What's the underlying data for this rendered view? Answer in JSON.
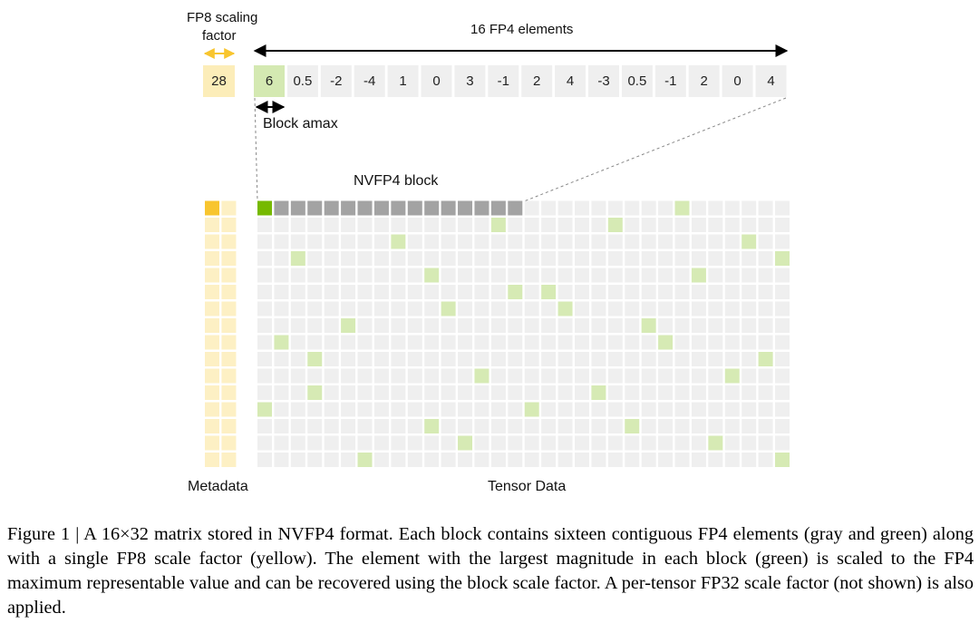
{
  "labels": {
    "fp8_title_line1": "FP8 scaling",
    "fp8_title_line2": "factor",
    "fp4_title": "16 FP4 elements",
    "block_amax": "Block amax",
    "nvfp4_block": "NVFP4 block",
    "metadata": "Metadata",
    "tensor_data": "Tensor Data"
  },
  "scale_value": "28",
  "fp4_values": [
    "6",
    "0.5",
    "-2",
    "-4",
    "1",
    "0",
    "3",
    "-1",
    "2",
    "4",
    "-3",
    "0.5",
    "-1",
    "2",
    "0",
    "4"
  ],
  "matrix": {
    "rows": 16,
    "cols": 32,
    "block_size": 16,
    "highlight_block_row": 0,
    "highlight_amax_col": 0,
    "amax_cells": [
      [
        0,
        25
      ],
      [
        1,
        14
      ],
      [
        1,
        21
      ],
      [
        2,
        8
      ],
      [
        2,
        29
      ],
      [
        3,
        2
      ],
      [
        3,
        31
      ],
      [
        4,
        10
      ],
      [
        4,
        26
      ],
      [
        5,
        15
      ],
      [
        5,
        17
      ],
      [
        6,
        11
      ],
      [
        6,
        18
      ],
      [
        7,
        5
      ],
      [
        7,
        23
      ],
      [
        8,
        1
      ],
      [
        8,
        24
      ],
      [
        9,
        3
      ],
      [
        9,
        30
      ],
      [
        10,
        13
      ],
      [
        10,
        28
      ],
      [
        11,
        3
      ],
      [
        11,
        20
      ],
      [
        12,
        0
      ],
      [
        12,
        16
      ],
      [
        13,
        10
      ],
      [
        13,
        22
      ],
      [
        14,
        12
      ],
      [
        14,
        27
      ],
      [
        15,
        6
      ],
      [
        15,
        31
      ]
    ]
  },
  "colors": {
    "scale_light": "#FDF0C4",
    "scale_dark": "#F8C52F",
    "scale_box": "#FCEDB9",
    "amax_green": "#76B900",
    "light_green": "#D6EAB4",
    "amax_box": "#D4E9B2",
    "block_gray": "#A3A3A3",
    "cell_gray": "#EFEFEF",
    "arrow_yellow": "#F8C52F"
  },
  "caption": "Figure 1 | A 16×32 matrix stored in NVFP4 format. Each block contains sixteen contiguous FP4 elements (gray and green) along with a single FP8 scale factor (yellow). The element with the largest magnitude in each block (green) is scaled to the FP4 maximum representable value and can be recovered using the block scale factor. A per-tensor FP32 scale factor (not shown) is also applied."
}
